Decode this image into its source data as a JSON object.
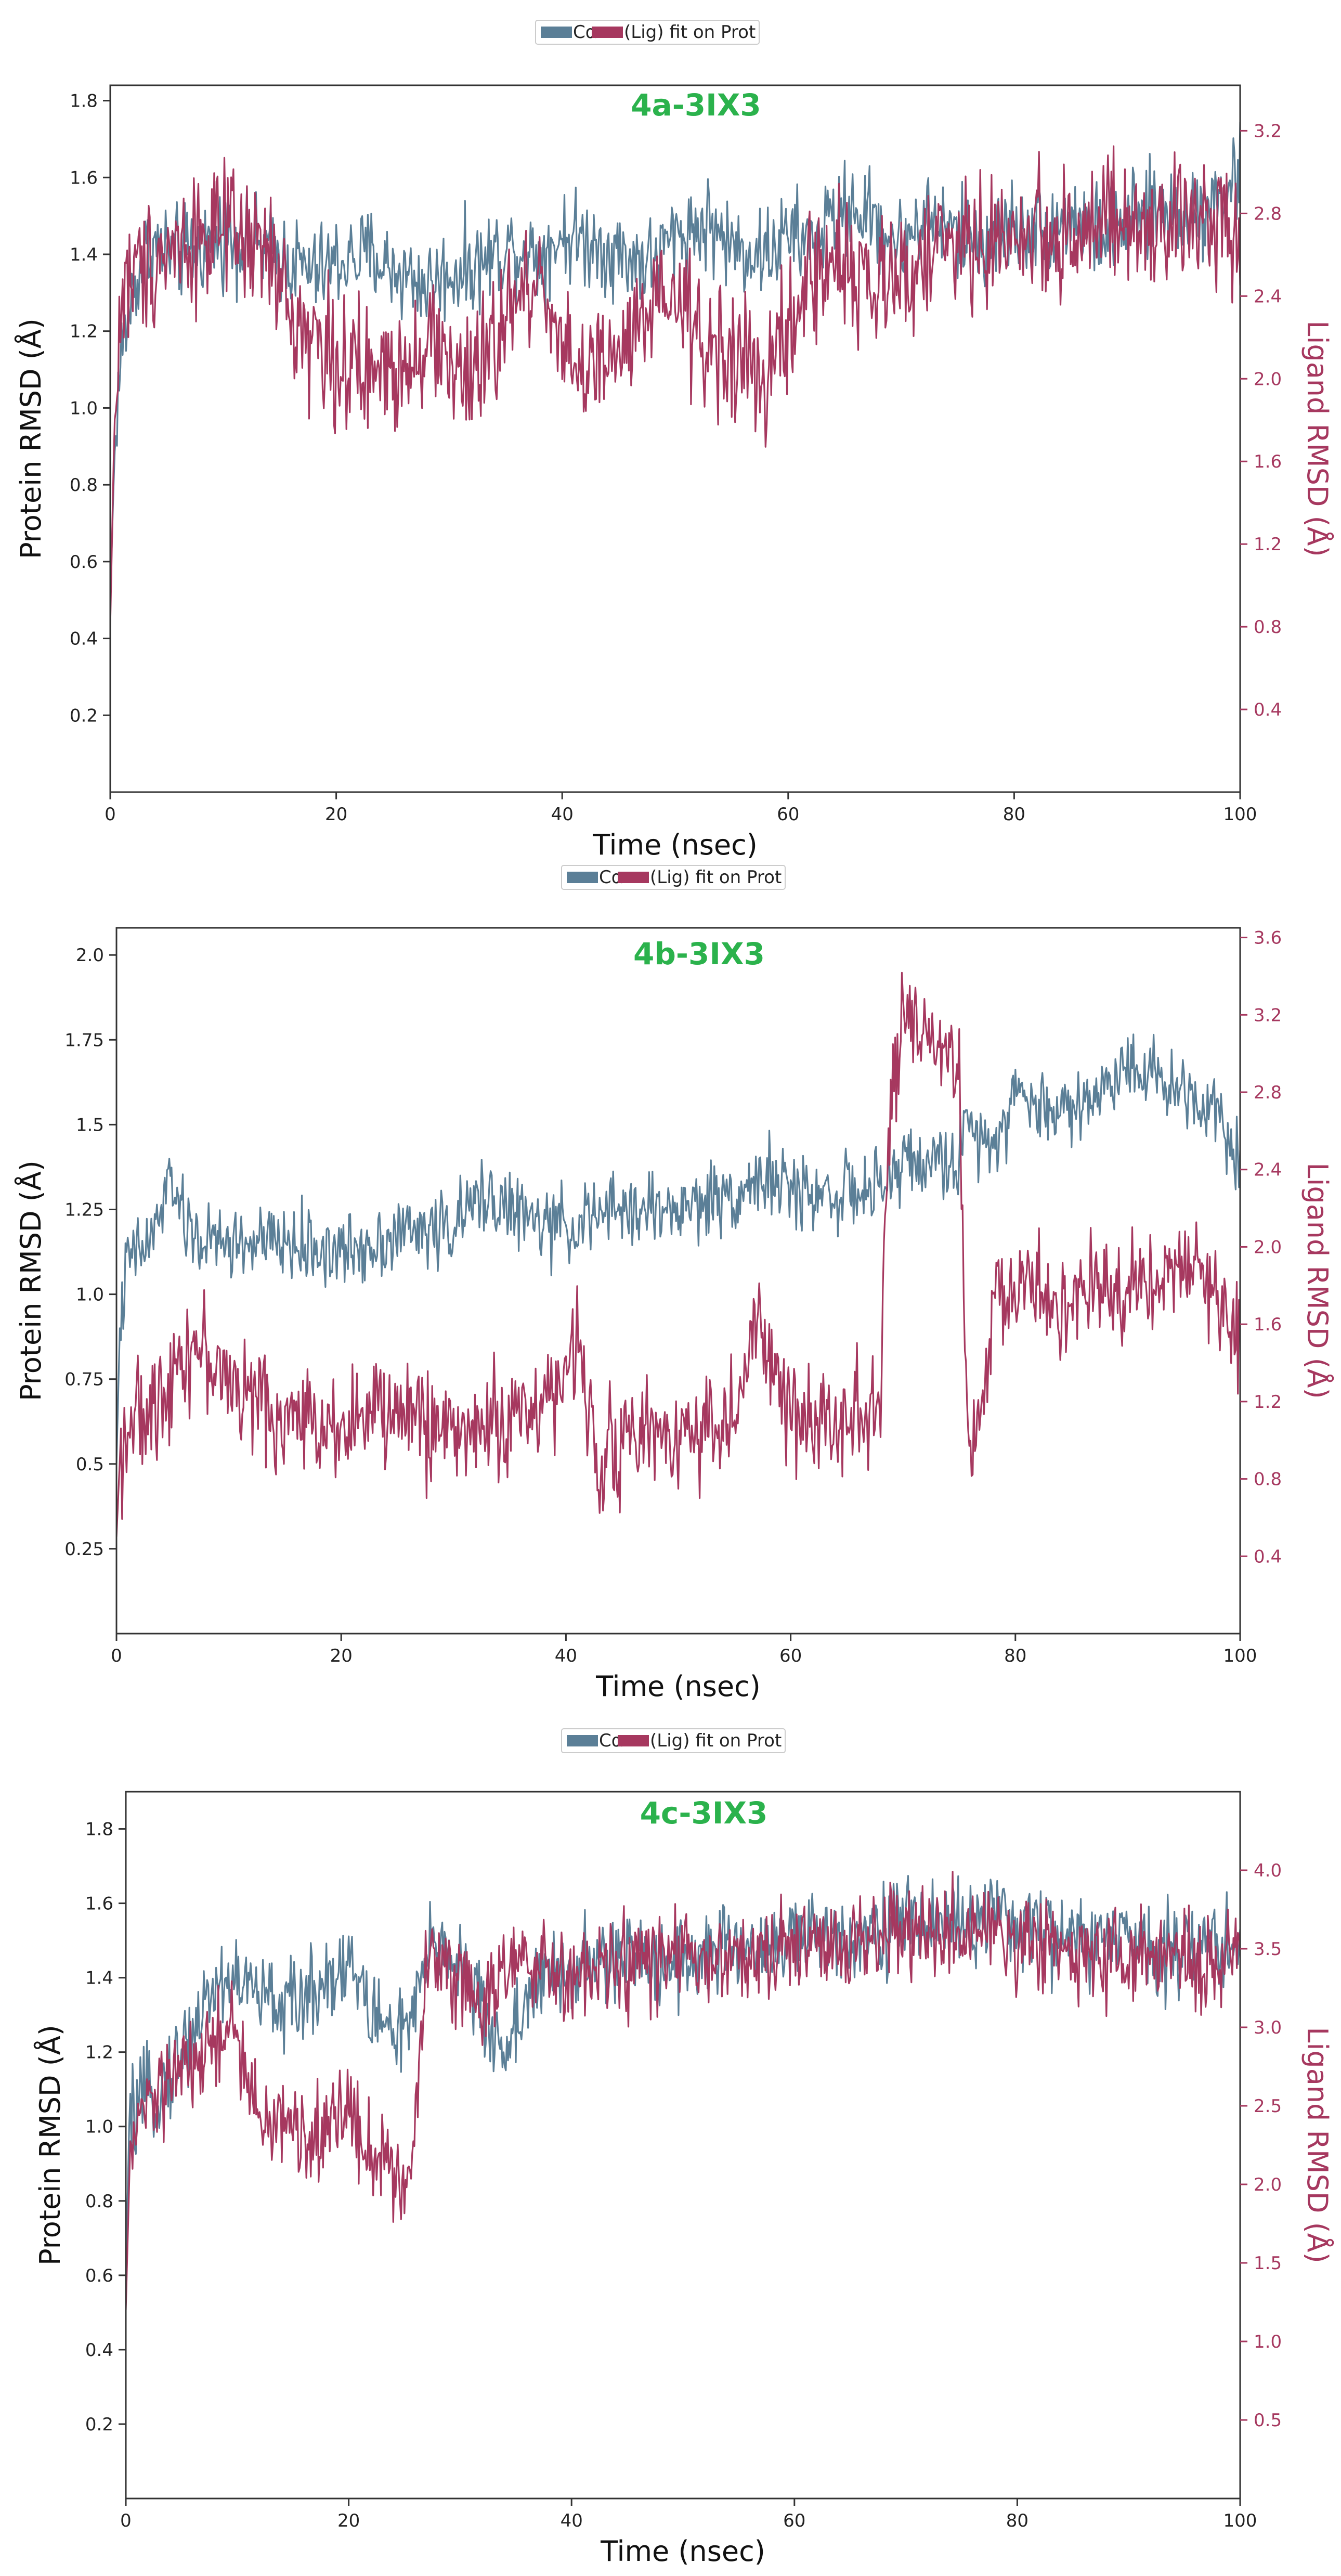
{
  "colors": {
    "protein": "#5b7f97",
    "ligand": "#a6385f",
    "title": "#2bb24c",
    "right_axis": "#a6385f",
    "frame": "#333333"
  },
  "chart_data": [
    {
      "type": "line",
      "title": "4a-3IX3",
      "xlabel": "Time (nsec)",
      "ylabel": "Protein RMSD (Å)",
      "ylabel_right": "Ligand RMSD (Å)",
      "legend": [
        "Cα",
        "(Lig) fit on Prot"
      ],
      "legend_text": "Cα (Lig) fit on Prot",
      "xlim": [
        0,
        100
      ],
      "ylim": [
        0,
        1.84
      ],
      "ylim_right": [
        0,
        3.42
      ],
      "xticks": [
        0,
        20,
        40,
        60,
        80,
        100
      ],
      "yticks": [
        0.2,
        0.4,
        0.6,
        0.8,
        1.0,
        1.2,
        1.4,
        1.6,
        1.8
      ],
      "yticks_right": [
        0.4,
        0.8,
        1.2,
        1.6,
        2.0,
        2.4,
        2.8,
        3.2
      ],
      "series": [
        {
          "name": "Cα",
          "axis": "left",
          "x": [
            0,
            0.3,
            0.6,
            1,
            2,
            3,
            4,
            6,
            8,
            10,
            12,
            15,
            18,
            20,
            23,
            25,
            28,
            30,
            33,
            35,
            38,
            40,
            43,
            45,
            48,
            50,
            53,
            55,
            58,
            60,
            62,
            64,
            66,
            68,
            70,
            72,
            75,
            78,
            80,
            83,
            85,
            88,
            90,
            93,
            95,
            98,
            100
          ],
          "y": [
            0.5,
            0.8,
            1.0,
            1.15,
            1.3,
            1.4,
            1.42,
            1.4,
            1.42,
            1.45,
            1.43,
            1.4,
            1.35,
            1.38,
            1.4,
            1.36,
            1.32,
            1.35,
            1.38,
            1.42,
            1.4,
            1.45,
            1.43,
            1.4,
            1.38,
            1.45,
            1.48,
            1.42,
            1.4,
            1.45,
            1.43,
            1.5,
            1.52,
            1.48,
            1.42,
            1.5,
            1.45,
            1.43,
            1.48,
            1.46,
            1.5,
            1.45,
            1.48,
            1.52,
            1.5,
            1.55,
            1.6
          ],
          "noise": 0.06
        },
        {
          "name": "(Lig) fit on Prot",
          "axis": "right",
          "x": [
            0,
            0.3,
            0.6,
            1,
            2,
            4,
            6,
            8,
            10,
            12,
            14,
            16,
            18,
            20,
            22,
            25,
            28,
            30,
            32,
            35,
            38,
            40,
            42,
            45,
            48,
            50,
            52,
            55,
            58,
            60,
            62,
            65,
            68,
            70,
            72,
            75,
            78,
            80,
            83,
            85,
            88,
            90,
            93,
            95,
            98,
            100
          ],
          "y": [
            0.8,
            1.6,
            2.0,
            2.4,
            2.5,
            2.6,
            2.65,
            2.7,
            2.7,
            2.65,
            2.6,
            2.3,
            2.2,
            2.1,
            2.0,
            2.05,
            2.2,
            2.1,
            1.95,
            2.3,
            2.5,
            2.2,
            2.0,
            2.1,
            2.3,
            2.4,
            2.2,
            2.1,
            2.0,
            2.2,
            2.5,
            2.6,
            2.4,
            2.5,
            2.6,
            2.65,
            2.65,
            2.7,
            2.7,
            2.7,
            2.75,
            2.7,
            2.7,
            2.75,
            2.8,
            2.75
          ],
          "noise": 0.16
        }
      ]
    },
    {
      "type": "line",
      "title": "4b-3IX3",
      "xlabel": "Time (nsec)",
      "ylabel": "Protein RMSD (Å)",
      "ylabel_right": "Ligand RMSD (Å)",
      "legend": [
        "Cα",
        "(Lig) fit on Prot"
      ],
      "legend_text": "Cα (Lig) fit on Prot",
      "xlim": [
        0,
        100
      ],
      "ylim": [
        0,
        2.08
      ],
      "ylim_right": [
        0,
        3.65
      ],
      "xticks": [
        0,
        20,
        40,
        60,
        80,
        100
      ],
      "yticks": [
        0.25,
        0.5,
        0.75,
        1.0,
        1.25,
        1.5,
        1.75,
        2.0
      ],
      "yticks_right": [
        0.4,
        0.8,
        1.2,
        1.6,
        2.0,
        2.4,
        2.8,
        3.2,
        3.6
      ],
      "series": [
        {
          "name": "Cα",
          "axis": "left",
          "x": [
            0,
            0.3,
            1,
            3,
            5,
            6,
            8,
            10,
            15,
            20,
            25,
            30,
            33,
            35,
            38,
            40,
            45,
            50,
            55,
            58,
            60,
            65,
            68,
            70,
            72,
            75,
            76,
            78,
            80,
            82,
            85,
            88,
            90,
            92,
            95,
            98,
            100
          ],
          "y": [
            0.5,
            0.9,
            1.1,
            1.15,
            1.35,
            1.2,
            1.15,
            1.15,
            1.15,
            1.12,
            1.18,
            1.2,
            1.3,
            1.25,
            1.2,
            1.2,
            1.25,
            1.25,
            1.3,
            1.35,
            1.3,
            1.3,
            1.3,
            1.4,
            1.38,
            1.4,
            1.5,
            1.45,
            1.6,
            1.55,
            1.55,
            1.6,
            1.7,
            1.65,
            1.6,
            1.55,
            1.4
          ],
          "noise": 0.055
        },
        {
          "name": "(Lig) fit on Prot",
          "axis": "right",
          "x": [
            0,
            0.3,
            1,
            3,
            5,
            7,
            10,
            15,
            20,
            25,
            30,
            35,
            40,
            41,
            43,
            45,
            50,
            55,
            57,
            60,
            65,
            68,
            68.5,
            69,
            70,
            72,
            75,
            75.5,
            76,
            77,
            78,
            80,
            85,
            90,
            95,
            98,
            100
          ],
          "y": [
            0.5,
            0.9,
            1.1,
            1.1,
            1.4,
            1.5,
            1.3,
            1.1,
            1.1,
            1.15,
            1.05,
            1.1,
            1.3,
            1.5,
            0.9,
            1.0,
            1.05,
            1.1,
            1.6,
            1.1,
            1.15,
            1.2,
            2.1,
            2.9,
            3.1,
            3.05,
            2.9,
            1.5,
            0.8,
            1.2,
            1.7,
            1.8,
            1.7,
            1.8,
            1.9,
            1.75,
            1.5
          ],
          "noise": 0.14
        }
      ]
    },
    {
      "type": "line",
      "title": "4c-3IX3",
      "xlabel": "Time (nsec)",
      "ylabel": "Protein RMSD (Å)",
      "ylabel_right": "Ligand RMSD (Å)",
      "legend": [
        "Cα",
        "(Lig) fit on Prot"
      ],
      "legend_text": "Cα (Lig) fit on Prot",
      "xlim": [
        0,
        100
      ],
      "ylim": [
        0,
        1.9
      ],
      "ylim_right": [
        0,
        4.5
      ],
      "xticks": [
        0,
        20,
        40,
        60,
        80,
        100
      ],
      "yticks": [
        0.2,
        0.4,
        0.6,
        0.8,
        1.0,
        1.2,
        1.4,
        1.6,
        1.8
      ],
      "yticks_right": [
        0.5,
        1.0,
        1.5,
        2.0,
        2.5,
        3.0,
        3.5,
        4.0
      ],
      "series": [
        {
          "name": "Cα",
          "axis": "left",
          "x": [
            0,
            0.3,
            1,
            3,
            5,
            8,
            10,
            12,
            15,
            18,
            20,
            22,
            25,
            26,
            27,
            28,
            30,
            32,
            34,
            36,
            38,
            40,
            45,
            50,
            55,
            60,
            65,
            70,
            75,
            80,
            85,
            90,
            95,
            100
          ],
          "y": [
            0.6,
            1.0,
            1.05,
            1.1,
            1.2,
            1.38,
            1.4,
            1.35,
            1.32,
            1.4,
            1.45,
            1.3,
            1.25,
            1.3,
            1.45,
            1.5,
            1.45,
            1.3,
            1.2,
            1.35,
            1.4,
            1.42,
            1.45,
            1.45,
            1.48,
            1.5,
            1.52,
            1.55,
            1.55,
            1.55,
            1.5,
            1.5,
            1.48,
            1.5
          ],
          "noise": 0.06
        },
        {
          "name": "(Lig) fit on Prot",
          "axis": "right",
          "x": [
            0,
            0.3,
            1,
            3,
            5,
            8,
            10,
            11,
            12,
            14,
            16,
            18,
            20,
            22,
            24,
            25,
            26,
            26.5,
            27,
            28,
            30,
            32,
            35,
            40,
            45,
            50,
            55,
            60,
            65,
            70,
            75,
            80,
            85,
            90,
            95,
            100
          ],
          "y": [
            1.2,
            2.0,
            2.4,
            2.6,
            2.7,
            2.9,
            3.0,
            2.6,
            2.4,
            2.4,
            2.3,
            2.35,
            2.5,
            2.2,
            2.1,
            2.0,
            2.3,
            3.0,
            3.4,
            3.5,
            3.3,
            3.2,
            3.4,
            3.3,
            3.4,
            3.45,
            3.4,
            3.5,
            3.55,
            3.6,
            3.6,
            3.55,
            3.5,
            3.45,
            3.4,
            3.45
          ],
          "noise": 0.15
        }
      ]
    }
  ]
}
